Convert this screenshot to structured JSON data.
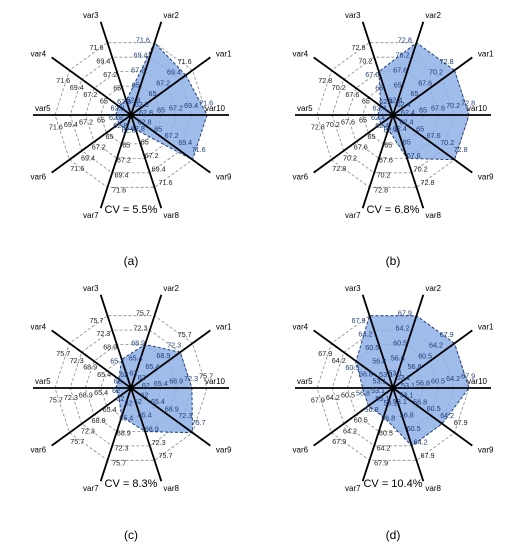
{
  "chart_data": [
    {
      "type": "radar",
      "panel": "(a)",
      "caption": "CV = 5.5%",
      "axes": [
        "var1",
        "var2",
        "var3",
        "var4",
        "var5",
        "var6",
        "var7",
        "var8",
        "var9",
        "var10"
      ],
      "rings": [
        "62.8",
        "65",
        "67.2",
        "69.4",
        "71.6"
      ],
      "range": [
        60.6,
        71.6
      ],
      "values": [
        70.4,
        71.6,
        62.8,
        62.8,
        62.8,
        62.8,
        62.8,
        62.8,
        71.6,
        71.6
      ]
    },
    {
      "type": "radar",
      "panel": "(b)",
      "caption": "CV = 6.8%",
      "axes": [
        "var1",
        "var2",
        "var3",
        "var4",
        "var5",
        "var6",
        "var7",
        "var8",
        "var9",
        "var10"
      ],
      "rings": [
        "62.4",
        "65",
        "67.6",
        "70.2",
        "72.8"
      ],
      "range": [
        59.8,
        72.8
      ],
      "values": [
        72.8,
        72.8,
        67.6,
        62.4,
        62.4,
        62.4,
        62.4,
        67.6,
        72.8,
        72.8
      ]
    },
    {
      "type": "radar",
      "panel": "(c)",
      "caption": "CV = 8.3%",
      "axes": [
        "var1",
        "var2",
        "var3",
        "var4",
        "var5",
        "var6",
        "var7",
        "var8",
        "var9",
        "var10"
      ],
      "rings": [
        "62",
        "65.4",
        "68.9",
        "72.3",
        "75.7"
      ],
      "range": [
        58.6,
        75.7
      ],
      "values": [
        72.3,
        68.9,
        65.4,
        62,
        62,
        62,
        65.4,
        68.9,
        75.7,
        72.3
      ]
    },
    {
      "type": "radar",
      "panel": "(d)",
      "caption": "CV = 10.4%",
      "axes": [
        "var1",
        "var2",
        "var3",
        "var4",
        "var5",
        "var6",
        "var7",
        "var8",
        "var9",
        "var10"
      ],
      "rings": [
        "53.1",
        "56.8",
        "60.5",
        "64.2",
        "67.9"
      ],
      "range": [
        49.4,
        67.9
      ],
      "values": [
        67.9,
        67.9,
        67.9,
        60.5,
        56.8,
        56.8,
        56.8,
        64.2,
        64.2,
        67.9
      ]
    }
  ]
}
